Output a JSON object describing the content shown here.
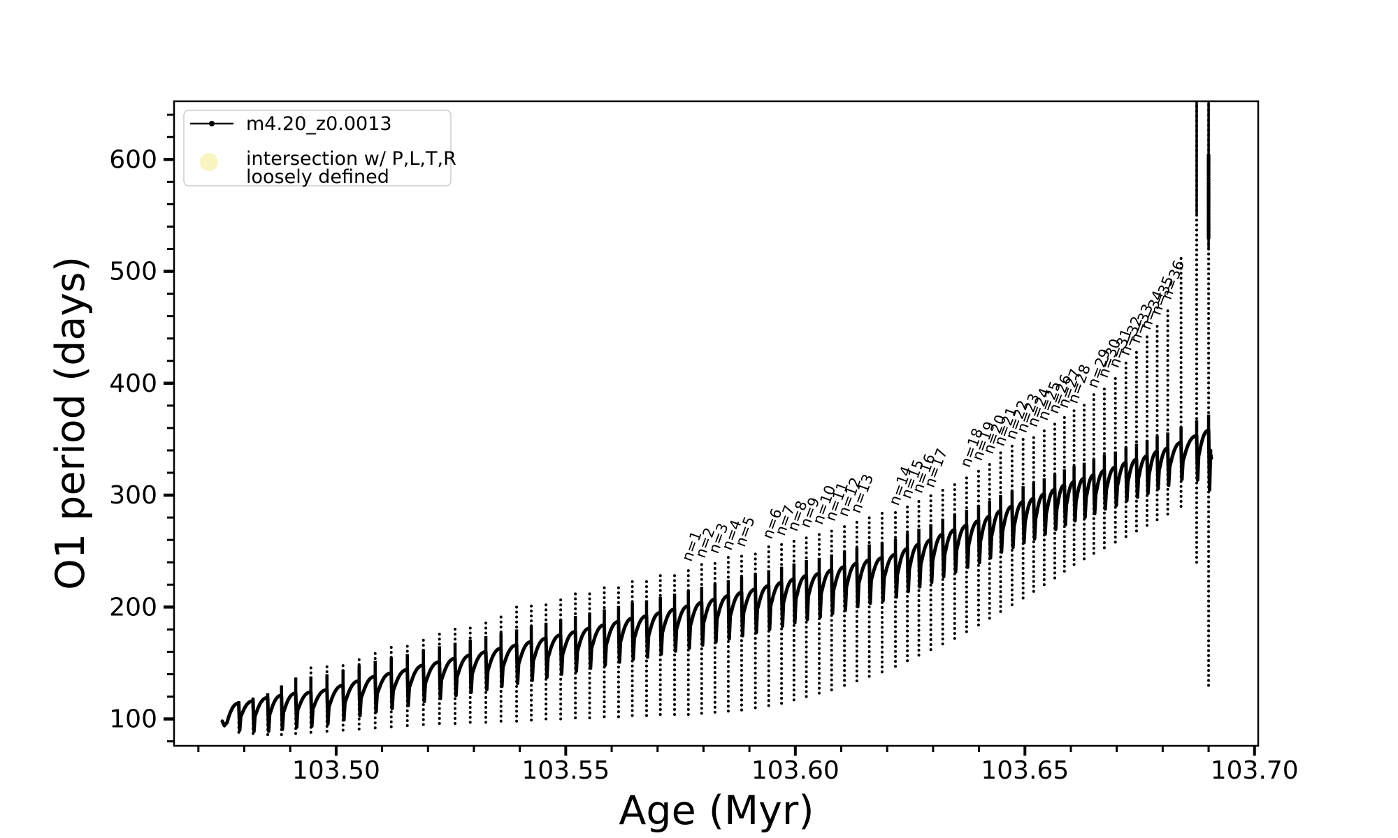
{
  "figure": {
    "background": "#ffffff",
    "line_color": "#000000",
    "spine_color": "#000000"
  },
  "legend": {
    "series1_label": "m4.20_z0.0013",
    "series2_label_line1": "intersection w/ P,L,T,R",
    "series2_label_line2": "loosely defined",
    "series2_marker_color": "#f8f5c2",
    "series1_marker": "line-with-dot",
    "series2_marker": "circle"
  },
  "chart_data": {
    "type": "line",
    "title": "",
    "xlabel": "Age (Myr)",
    "ylabel": "O1 period (days)",
    "series_name": "m4.20_z0.0013",
    "xlim": [
      103.4647,
      103.7008
    ],
    "ylim": [
      76,
      652
    ],
    "x_major_ticks": [
      103.5,
      103.55,
      103.6,
      103.65,
      103.7
    ],
    "x_tick_labels": [
      "103.50",
      "103.55",
      "103.60",
      "103.65",
      "103.70"
    ],
    "x_minor_step": 0.01,
    "y_major_ticks": [
      100,
      200,
      300,
      400,
      500,
      600
    ],
    "y_tick_labels": [
      "100",
      "200",
      "300",
      "400",
      "500",
      "600"
    ],
    "y_minor_step": 20,
    "grid": false,
    "legend_position": "upper-left",
    "start": {
      "age": 103.4752,
      "period": 98
    },
    "end_tail": [
      {
        "age": 103.6903,
        "period": 340
      },
      {
        "age": 103.6906,
        "period": 333
      }
    ],
    "pulses": [
      [
        103.4788,
        114,
        116,
        88,
        null
      ],
      [
        103.4819,
        116,
        119,
        87,
        null
      ],
      [
        103.4851,
        119,
        123,
        86,
        null
      ],
      [
        103.4881,
        121,
        130,
        86,
        null
      ],
      [
        103.4912,
        123,
        140,
        87,
        null
      ],
      [
        103.4945,
        124,
        146,
        88,
        null
      ],
      [
        103.498,
        126,
        147,
        89,
        null
      ],
      [
        103.5015,
        130,
        150,
        90,
        null
      ],
      [
        103.505,
        134,
        155,
        91,
        null
      ],
      [
        103.5085,
        138,
        160,
        92,
        null
      ],
      [
        103.512,
        141,
        164,
        93,
        null
      ],
      [
        103.5155,
        144,
        168,
        94,
        null
      ],
      [
        103.519,
        148,
        173,
        95,
        null
      ],
      [
        103.5225,
        151,
        177,
        96,
        null
      ],
      [
        103.5259,
        154,
        181,
        96,
        null
      ],
      [
        103.5292,
        157,
        185,
        97,
        null
      ],
      [
        103.5326,
        160,
        190,
        97,
        null
      ],
      [
        103.5359,
        163,
        195,
        98,
        null
      ],
      [
        103.5393,
        166,
        201,
        98,
        null
      ],
      [
        103.5425,
        169,
        204,
        99,
        null
      ],
      [
        103.5457,
        172,
        206,
        100,
        null
      ],
      [
        103.5489,
        175,
        209,
        100,
        null
      ],
      [
        103.5521,
        178,
        212,
        101,
        null
      ],
      [
        103.5552,
        181,
        215,
        101,
        null
      ],
      [
        103.5584,
        184,
        218,
        102,
        null
      ],
      [
        103.5615,
        187,
        221,
        102,
        null
      ],
      [
        103.5645,
        190,
        224,
        103,
        null
      ],
      [
        103.5676,
        192,
        226,
        103,
        null
      ],
      [
        103.5706,
        195,
        229,
        104,
        null
      ],
      [
        103.5737,
        198,
        232,
        104,
        null
      ],
      [
        103.5767,
        201,
        235,
        104,
        "n=1"
      ],
      [
        103.5796,
        204,
        238,
        105,
        "n=2"
      ],
      [
        103.5825,
        207,
        242,
        106,
        "n=3"
      ],
      [
        103.5854,
        210,
        245,
        107,
        "n=4"
      ],
      [
        103.5883,
        213,
        248,
        108,
        "n=5"
      ],
      [
        103.5913,
        216,
        251,
        110,
        null
      ],
      [
        103.5942,
        219,
        255,
        112,
        "n=6"
      ],
      [
        103.597,
        222,
        258,
        114,
        "n=7"
      ],
      [
        103.5997,
        225,
        262,
        117,
        "n=8"
      ],
      [
        103.6024,
        228,
        265,
        120,
        "n=9"
      ],
      [
        103.6052,
        230,
        268,
        123,
        "n=10"
      ],
      [
        103.6079,
        233,
        271,
        126,
        "n=11"
      ],
      [
        103.6107,
        236,
        275,
        130,
        "n=12"
      ],
      [
        103.6134,
        239,
        278,
        134,
        "n=13"
      ],
      [
        103.6161,
        242,
        282,
        138,
        null
      ],
      [
        103.6189,
        244,
        284,
        142,
        null
      ],
      [
        103.6218,
        247,
        285,
        147,
        "n=14"
      ],
      [
        103.6244,
        252,
        291,
        152,
        "n=15"
      ],
      [
        103.6269,
        256,
        296,
        157,
        "n=16"
      ],
      [
        103.6295,
        260,
        301,
        162,
        "n=17"
      ],
      [
        103.6321,
        265,
        307,
        167,
        null
      ],
      [
        103.6347,
        269,
        313,
        172,
        null
      ],
      [
        103.6373,
        273,
        319,
        178,
        "n=18"
      ],
      [
        103.6399,
        277,
        325,
        184,
        "n=19"
      ],
      [
        103.6423,
        281,
        331,
        190,
        "n=20"
      ],
      [
        103.6447,
        286,
        338,
        196,
        "n=21"
      ],
      [
        103.6472,
        290,
        344,
        202,
        "n=22"
      ],
      [
        103.6496,
        294,
        350,
        208,
        "n=23"
      ],
      [
        103.6519,
        297,
        355,
        214,
        "n=24"
      ],
      [
        103.6542,
        301,
        361,
        220,
        "n=25"
      ],
      [
        103.6565,
        305,
        367,
        226,
        "n=26"
      ],
      [
        103.6586,
        309,
        372,
        232,
        "n=27"
      ],
      [
        103.6607,
        312,
        376,
        238,
        "n=28"
      ],
      [
        103.6629,
        315,
        383,
        243,
        null
      ],
      [
        103.665,
        318,
        390,
        248,
        "n=29"
      ],
      [
        103.6673,
        322,
        399,
        253,
        "n=30"
      ],
      [
        103.6697,
        325,
        408,
        258,
        "n=31"
      ],
      [
        103.672,
        329,
        419,
        263,
        "n=32"
      ],
      [
        103.6743,
        332,
        430,
        268,
        "n=33"
      ],
      [
        103.6766,
        335,
        442,
        273,
        "n=34"
      ],
      [
        103.6788,
        339,
        455,
        278,
        "n=35"
      ],
      [
        103.6811,
        342,
        469,
        283,
        "n=36"
      ],
      [
        103.684,
        347,
        512,
        290,
        null
      ],
      [
        103.6874,
        353,
        660,
        240,
        null,
        {
          "solid_to": 550
        }
      ],
      [
        103.69,
        358,
        660,
        130,
        null,
        {
          "solid_to": 520,
          "dense": [
            530,
            605
          ]
        }
      ]
    ]
  }
}
